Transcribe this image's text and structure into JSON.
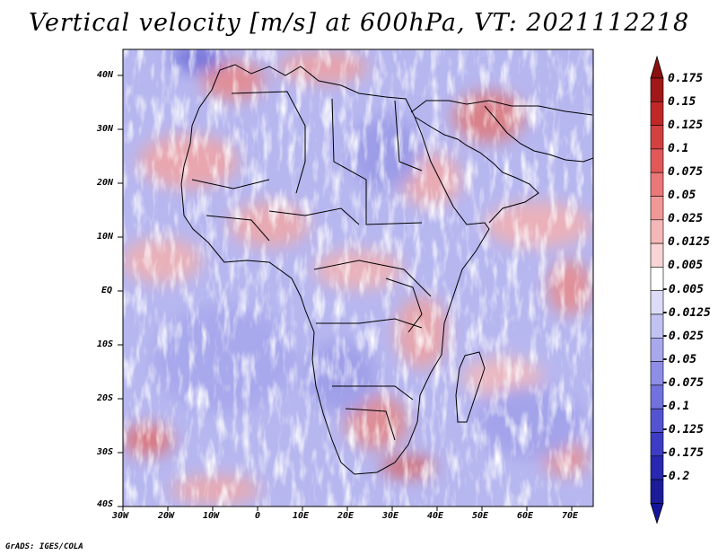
{
  "title": "Vertical velocity [m/s] at 600hPa, VT: 2021112218",
  "credit": "GrADS: IGES/COLA",
  "map": {
    "region": "Africa",
    "lat_labels": [
      "40N",
      "30N",
      "20N",
      "10N",
      "EQ",
      "10S",
      "20S",
      "30S",
      "40S"
    ],
    "lon_labels": [
      "30W",
      "20W",
      "10W",
      "0",
      "10E",
      "20E",
      "30E",
      "40E",
      "50E",
      "60E",
      "70E"
    ]
  },
  "colorbar": {
    "levels": [
      "0.175",
      "0.15",
      "0.125",
      "0.1",
      "0.075",
      "0.05",
      "0.025",
      "0.0125",
      "0.005",
      "-0.005",
      "-0.0125",
      "-0.025",
      "-0.05",
      "-0.075",
      "-0.1",
      "-0.125",
      "-0.175",
      "-0.2"
    ],
    "colors": [
      "#a01818",
      "#c02828",
      "#d24040",
      "#e05858",
      "#ea7878",
      "#f09898",
      "#f5b8b8",
      "#f9d4d4",
      "#ffffff",
      "#dcdcf8",
      "#c2c2f2",
      "#a8a8ec",
      "#8e8ee6",
      "#7272de",
      "#5454d2",
      "#3c3cc4",
      "#2828b0",
      "#1c1c98"
    ],
    "top_arrow_color": "#8a1010",
    "bottom_arrow_color": "#14149a"
  }
}
